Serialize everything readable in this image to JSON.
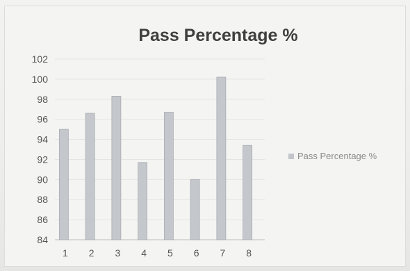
{
  "chart_data": {
    "type": "bar",
    "title": "Pass Percentage %",
    "categories": [
      "1",
      "2",
      "3",
      "4",
      "5",
      "6",
      "7",
      "8"
    ],
    "series": [
      {
        "name": "Pass Percentage %",
        "values": [
          95,
          96.6,
          98.3,
          91.7,
          96.7,
          90,
          100.2,
          93.4
        ]
      }
    ],
    "xlabel": "",
    "ylabel": "",
    "ylim": [
      84,
      102
    ],
    "yticks": [
      "84",
      "86",
      "88",
      "90",
      "92",
      "94",
      "96",
      "98",
      "100",
      "102"
    ],
    "grid": true,
    "legend_position": "right",
    "colors": {
      "bar": "#c4c7cc",
      "bar_edge": "#a9acb2",
      "grid": "#e4e4e2",
      "axis": "#bdbdbb"
    }
  }
}
